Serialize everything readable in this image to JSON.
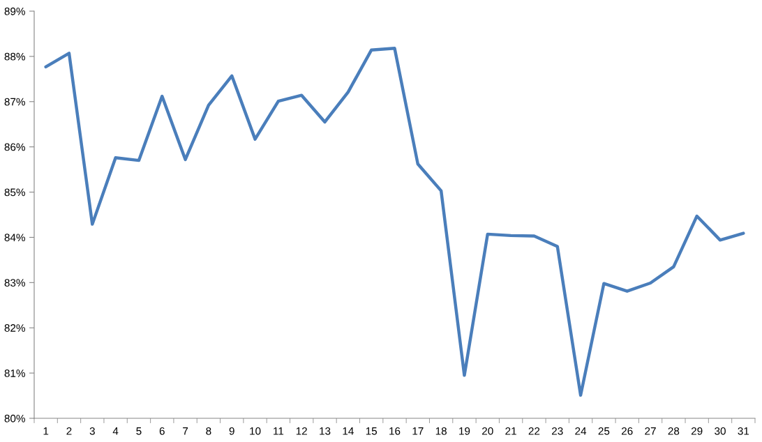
{
  "chart_data": {
    "type": "line",
    "categories": [
      "1",
      "2",
      "3",
      "4",
      "5",
      "6",
      "7",
      "8",
      "9",
      "10",
      "11",
      "12",
      "13",
      "14",
      "15",
      "16",
      "17",
      "18",
      "19",
      "20",
      "21",
      "22",
      "23",
      "24",
      "25",
      "26",
      "27",
      "28",
      "29",
      "30",
      "31"
    ],
    "series": [
      {
        "color": "#4a7ebb",
        "values": [
          87.77,
          88.07,
          84.29,
          85.76,
          85.7,
          87.12,
          85.72,
          86.92,
          87.57,
          86.17,
          87.01,
          87.14,
          86.55,
          87.21,
          88.14,
          88.18,
          85.62,
          85.03,
          80.95,
          84.07,
          84.04,
          84.03,
          83.8,
          80.51,
          82.98,
          82.81,
          82.99,
          83.35,
          84.47,
          83.94,
          84.09
        ]
      }
    ],
    "ylim": [
      80,
      89
    ],
    "yticks": [
      {
        "value": 80,
        "label": "80%"
      },
      {
        "value": 81,
        "label": "81%"
      },
      {
        "value": 82,
        "label": "82%"
      },
      {
        "value": 83,
        "label": "83%"
      },
      {
        "value": 84,
        "label": "84%"
      },
      {
        "value": 85,
        "label": "85%"
      },
      {
        "value": 86,
        "label": "86%"
      },
      {
        "value": 87,
        "label": "87%"
      },
      {
        "value": 88,
        "label": "88%"
      },
      {
        "value": 89,
        "label": "89%"
      }
    ],
    "grid": false,
    "legend": false,
    "marker": "none",
    "line_style": "solid"
  }
}
